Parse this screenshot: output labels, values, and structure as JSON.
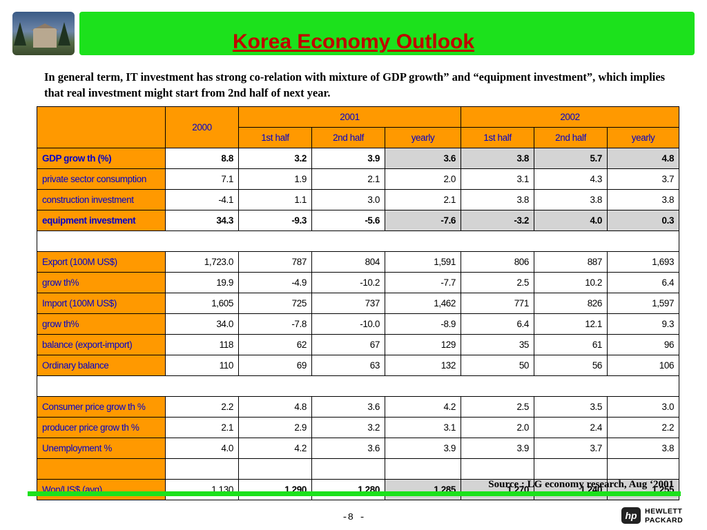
{
  "title": "Korea Economy Outlook",
  "intro": "In general term, IT investment has strong co-relation with mixture of GDP growth” and “equipment investment”, which implies that real investment might start from 2nd half of next year.",
  "table": {
    "headers": {
      "y2000": "2000",
      "y2001": "2001",
      "y2002": "2002",
      "sub": [
        "1st half",
        "2nd half",
        "yearly",
        "1st half",
        "2nd half",
        "yearly"
      ]
    },
    "group1": [
      {
        "label": "GDP grow th (%)",
        "values": [
          "8.8",
          "3.2",
          "3.9",
          "3.6",
          "3.8",
          "5.7",
          "4.8"
        ]
      },
      {
        "label": "private sector consumption",
        "values": [
          "7.1",
          "1.9",
          "2.1",
          "2.0",
          "3.1",
          "4.3",
          "3.7"
        ]
      },
      {
        "label": "construction investment",
        "values": [
          "-4.1",
          "1.1",
          "3.0",
          "2.1",
          "3.8",
          "3.8",
          "3.8"
        ]
      },
      {
        "label": "equipment investment",
        "values": [
          "34.3",
          "-9.3",
          "-5.6",
          "-7.6",
          "-3.2",
          "4.0",
          "0.3"
        ]
      }
    ],
    "group2": [
      {
        "label": "Export (100M US$)",
        "values": [
          "1,723.0",
          "787",
          "804",
          "1,591",
          "806",
          "887",
          "1,693"
        ]
      },
      {
        "label": "grow th%",
        "values": [
          "19.9",
          "-4.9",
          "-10.2",
          "-7.7",
          "2.5",
          "10.2",
          "6.4"
        ]
      },
      {
        "label": "Import (100M US$)",
        "values": [
          "1,605",
          "725",
          "737",
          "1,462",
          "771",
          "826",
          "1,597"
        ]
      },
      {
        "label": "grow th%",
        "values": [
          "34.0",
          "-7.8",
          "-10.0",
          "-8.9",
          "6.4",
          "12.1",
          "9.3"
        ]
      },
      {
        "label": "balance (export-import)",
        "values": [
          "118",
          "62",
          "67",
          "129",
          "35",
          "61",
          "96"
        ]
      },
      {
        "label": "Ordinary balance",
        "values": [
          "110",
          "69",
          "63",
          "132",
          "50",
          "56",
          "106"
        ]
      }
    ],
    "group3": [
      {
        "label": "Consumer price grow th %",
        "values": [
          "2.2",
          "4.8",
          "3.6",
          "4.2",
          "2.5",
          "3.5",
          "3.0"
        ]
      },
      {
        "label": "producer price grow th %",
        "values": [
          "2.1",
          "2.9",
          "3.2",
          "3.1",
          "2.0",
          "2.4",
          "2.2"
        ]
      },
      {
        "label": "Unemployment %",
        "values": [
          "4.0",
          "4.2",
          "3.6",
          "3.9",
          "3.9",
          "3.7",
          "3.8"
        ]
      },
      {
        "label": "",
        "values": [
          "",
          "",
          "",
          "",
          "",
          "",
          ""
        ]
      },
      {
        "label": "Won/US$ (avg)",
        "values": [
          "1,130",
          "1,290",
          "1,280",
          "1,285",
          "1,270",
          "1,240",
          "1,255"
        ]
      }
    ]
  },
  "source": "Source : LG economy research, Aug ‘2001",
  "page_number": "-8 -",
  "logo": {
    "badge": "hp",
    "line1": "HEWLETT",
    "line2": "PACKARD"
  },
  "colors": {
    "title_bar": "#1ce11c",
    "title_text": "#c00000",
    "label_bg": "#ff9900",
    "label_text": "#0000cc",
    "highlight": "#d4d4d4"
  }
}
